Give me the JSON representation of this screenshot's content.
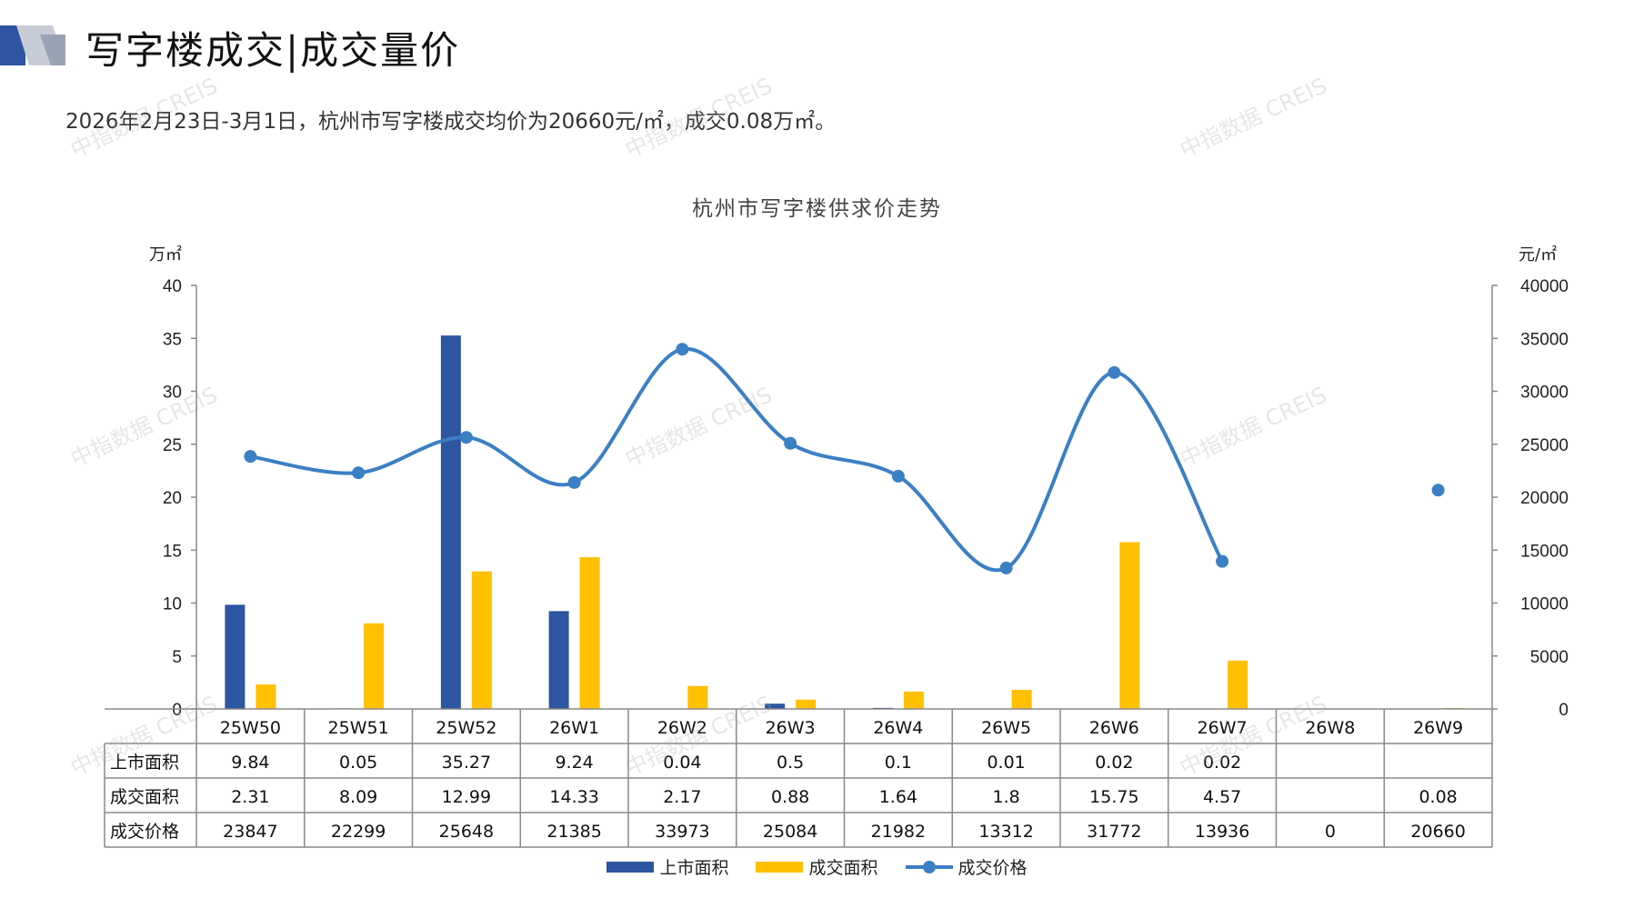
{
  "header": {
    "title": "写字楼成交|成交量价",
    "summary": "2026年2月23日-3月1日，杭州市写字楼成交均价为20660元/㎡，成交0.08万㎡。"
  },
  "watermark_text": "中指数据 CREIS",
  "colors": {
    "supply": "#2e55a2",
    "deal": "#ffc000",
    "price": "#3b7fc4",
    "accent": "#2e55a2"
  },
  "chart_data": {
    "type": "bar+line",
    "title": "杭州市写字楼供求价走势",
    "left_unit": "万㎡",
    "right_unit": "元/㎡",
    "left_ylim": [
      0,
      40
    ],
    "left_ticks": [
      0,
      5,
      10,
      15,
      20,
      25,
      30,
      35,
      40
    ],
    "right_ylim": [
      0,
      40000
    ],
    "right_ticks": [
      0,
      5000,
      10000,
      15000,
      20000,
      25000,
      30000,
      35000,
      40000
    ],
    "categories": [
      "25W50",
      "25W51",
      "25W52",
      "26W1",
      "26W2",
      "26W3",
      "26W4",
      "26W5",
      "26W6",
      "26W7",
      "26W8",
      "26W9"
    ],
    "series": [
      {
        "name": "上市面积",
        "type": "bar",
        "axis": "left",
        "values": [
          9.84,
          0.05,
          35.27,
          9.24,
          0.04,
          0.5,
          0.1,
          0.01,
          0.02,
          0.02,
          null,
          null
        ]
      },
      {
        "name": "成交面积",
        "type": "bar",
        "axis": "left",
        "values": [
          2.31,
          8.09,
          12.99,
          14.33,
          2.17,
          0.88,
          1.64,
          1.8,
          15.75,
          4.57,
          null,
          0.08
        ]
      },
      {
        "name": "成交价格",
        "type": "line",
        "axis": "right",
        "values": [
          23847,
          22299,
          25648,
          21385,
          33973,
          25084,
          21982,
          13312,
          31772,
          13936,
          0,
          20660
        ]
      }
    ],
    "table_rows": [
      {
        "label": "上市面积",
        "cells": [
          "9.84",
          "0.05",
          "35.27",
          "9.24",
          "0.04",
          "0.5",
          "0.1",
          "0.01",
          "0.02",
          "0.02",
          "",
          ""
        ]
      },
      {
        "label": "成交面积",
        "cells": [
          "2.31",
          "8.09",
          "12.99",
          "14.33",
          "2.17",
          "0.88",
          "1.64",
          "1.8",
          "15.75",
          "4.57",
          "",
          "0.08"
        ]
      },
      {
        "label": "成交价格",
        "cells": [
          "23847",
          "22299",
          "25648",
          "21385",
          "33973",
          "25084",
          "21982",
          "13312",
          "31772",
          "13936",
          "0",
          "20660"
        ]
      }
    ],
    "legend": [
      "上市面积",
      "成交面积",
      "成交价格"
    ],
    "legend_position": "bottom"
  }
}
